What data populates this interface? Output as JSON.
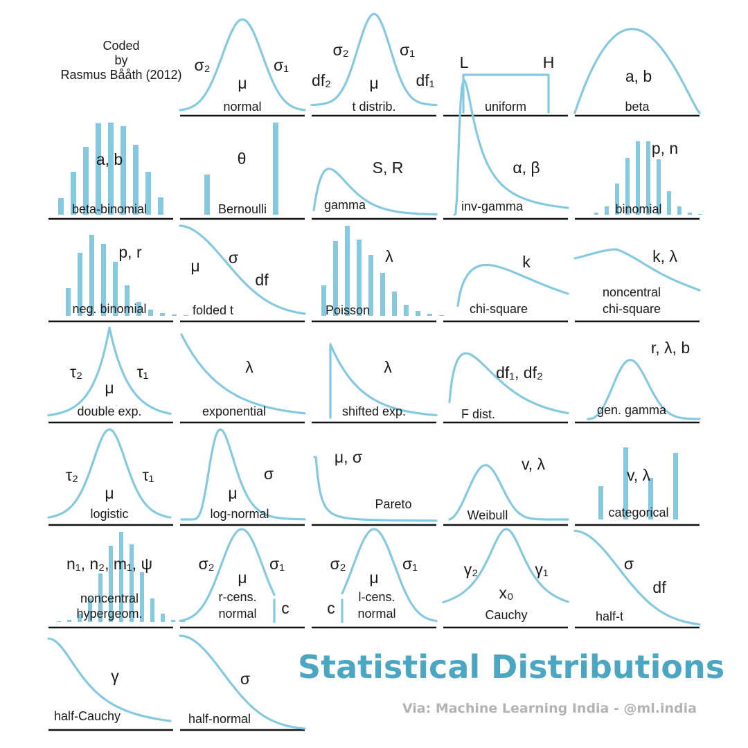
{
  "credit": {
    "line1": "Coded",
    "line2": "by",
    "line3": "Rasmus Bååth (2012)"
  },
  "title": "Statistical Distributions",
  "via": "Via: Machine Learning India - @ml.india",
  "colors": {
    "curve": "#84c9e0",
    "title": "#4aa6c2",
    "via": "#b3b3b3",
    "baseline": "#111111"
  },
  "panels": [
    {
      "id": "normal",
      "name": "normal",
      "params": [
        "σ₂",
        "σ₁",
        "μ"
      ]
    },
    {
      "id": "t",
      "name": "t distrib.",
      "params": [
        "σ₂",
        "σ₁",
        "df₂",
        "μ",
        "df₁"
      ]
    },
    {
      "id": "uniform",
      "name": "uniform",
      "params": [
        "L",
        "H"
      ]
    },
    {
      "id": "beta",
      "name": "beta",
      "params": [
        "a, b"
      ]
    },
    {
      "id": "betabinomial",
      "name": "beta-binomial",
      "params": [
        "a, b"
      ]
    },
    {
      "id": "bernoulli",
      "name": "Bernoulli",
      "params": [
        "θ"
      ]
    },
    {
      "id": "gamma",
      "name": "gamma",
      "params": [
        "S, R"
      ]
    },
    {
      "id": "invgamma",
      "name": "inv-gamma",
      "params": [
        "α, β"
      ]
    },
    {
      "id": "binomial",
      "name": "binomial",
      "params": [
        "p, n"
      ]
    },
    {
      "id": "negbinomial",
      "name": "neg. binomial",
      "params": [
        "p, r"
      ]
    },
    {
      "id": "foldedt",
      "name": "folded t",
      "params": [
        "μ",
        "σ",
        "df"
      ]
    },
    {
      "id": "poisson",
      "name": "Poisson",
      "params": [
        "λ"
      ]
    },
    {
      "id": "chisquare",
      "name": "chi-square",
      "params": [
        "k"
      ]
    },
    {
      "id": "ncchisq",
      "name": "noncentral",
      "name2": "chi-square",
      "params": [
        "k, λ"
      ]
    },
    {
      "id": "doubleexp",
      "name": "double exp.",
      "params": [
        "τ₂",
        "τ₁",
        "μ"
      ]
    },
    {
      "id": "exponential",
      "name": "exponential",
      "params": [
        "λ"
      ]
    },
    {
      "id": "shiftedexp",
      "name": "shifted exp.",
      "params": [
        "λ"
      ]
    },
    {
      "id": "fdist",
      "name": "F dist.",
      "params": [
        "df₁, df₂"
      ]
    },
    {
      "id": "gengamma",
      "name": "gen. gamma",
      "params": [
        "r, λ, b"
      ]
    },
    {
      "id": "logistic",
      "name": "logistic",
      "params": [
        "τ₂",
        "τ₁",
        "μ"
      ]
    },
    {
      "id": "lognormal",
      "name": "log-normal",
      "params": [
        "μ",
        "σ"
      ]
    },
    {
      "id": "pareto",
      "name": "Pareto",
      "params": [
        "μ, σ"
      ]
    },
    {
      "id": "weibull",
      "name": "Weibull",
      "params": [
        "v, λ"
      ]
    },
    {
      "id": "categorical",
      "name": "categorical",
      "params": [
        "v, λ"
      ]
    },
    {
      "id": "nchypergeom",
      "name": "noncentral",
      "name2": "hypergeom.",
      "params": [
        "n₁, n₂, m₁, ψ"
      ]
    },
    {
      "id": "rcensnormal",
      "name": "r-cens.",
      "name2": "normal",
      "params": [
        "σ₂",
        "σ₁",
        "μ",
        "c"
      ]
    },
    {
      "id": "lcensnormal",
      "name": "l-cens.",
      "name2": "normal",
      "params": [
        "σ₂",
        "σ₁",
        "μ",
        "c"
      ]
    },
    {
      "id": "cauchy",
      "name": "Cauchy",
      "params": [
        "γ₂",
        "γ₁",
        "x₀"
      ]
    },
    {
      "id": "halft",
      "name": "half-t",
      "params": [
        "σ",
        "df"
      ]
    },
    {
      "id": "halfcauchy",
      "name": "half-Cauchy",
      "params": [
        "γ"
      ]
    },
    {
      "id": "halfnormal",
      "name": "half-normal",
      "params": [
        "σ"
      ]
    }
  ]
}
